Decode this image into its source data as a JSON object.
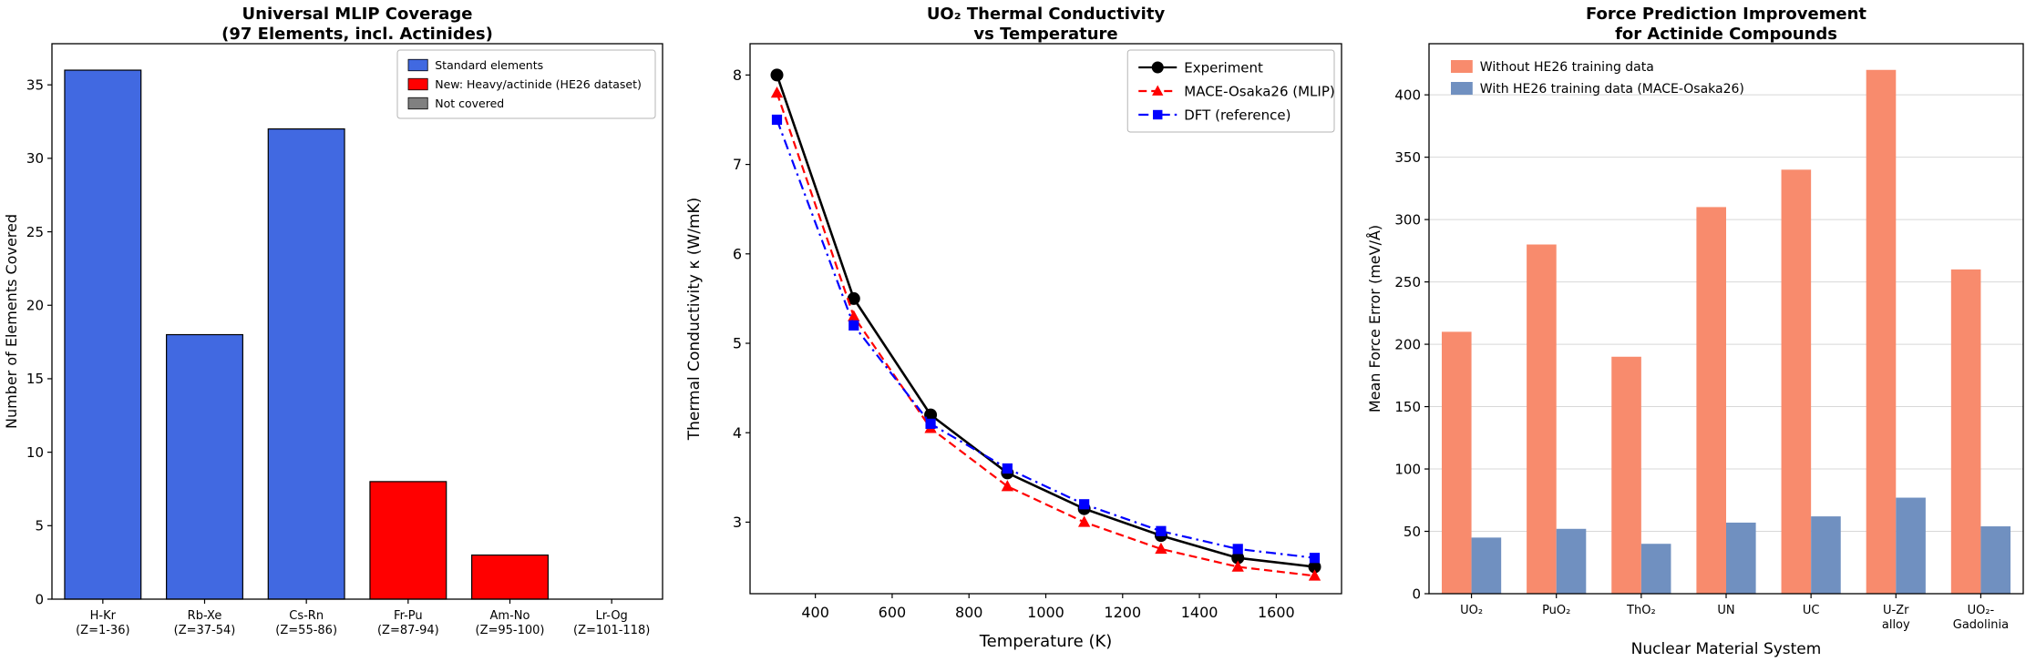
{
  "figure": {
    "background_color": "#ffffff"
  },
  "chart_data": [
    {
      "type": "bar",
      "title": "Universal MLIP Coverage\n(97 Elements, incl. Actinides)",
      "xlabel": "",
      "ylabel": "Number of Elements Covered",
      "categories": [
        "H-Kr\n(Z=1-36)",
        "Rb-Xe\n(Z=37-54)",
        "Cs-Rn\n(Z=55-86)",
        "Fr-Pu\n(Z=87-94)",
        "Am-No\n(Z=95-100)",
        "Lr-Og\n(Z=101-118)"
      ],
      "values": [
        36,
        18,
        32,
        8,
        3,
        0
      ],
      "bar_colors": [
        "#4169e1",
        "#4169e1",
        "#4169e1",
        "#ff0000",
        "#ff0000",
        "#808080"
      ],
      "ylim": [
        0,
        37.8
      ],
      "yticks": [
        0,
        5,
        10,
        15,
        20,
        25,
        30,
        35
      ],
      "grid": false,
      "legend": {
        "position": "top-right",
        "frame": true,
        "swatch_edge": "#000000",
        "items": [
          {
            "label": "Standard elements",
            "color": "#4169e1"
          },
          {
            "label": "New: Heavy/actinide (HE26 dataset)",
            "color": "#ff0000"
          },
          {
            "label": "Not covered",
            "color": "#808080"
          }
        ]
      }
    },
    {
      "type": "line",
      "title": "UO₂ Thermal Conductivity\nvs Temperature",
      "xlabel": "Temperature (K)",
      "ylabel": "Thermal Conductivity κ (W/mK)",
      "x": [
        300,
        500,
        700,
        900,
        1100,
        1300,
        1500,
        1700
      ],
      "xlim": [
        230,
        1770
      ],
      "ylim": [
        2.2,
        8.35
      ],
      "xticks": [
        400,
        600,
        800,
        1000,
        1200,
        1400,
        1600
      ],
      "yticks": [
        3,
        4,
        5,
        6,
        7,
        8
      ],
      "grid": false,
      "series": [
        {
          "name": "Experiment",
          "color": "#000000",
          "marker": "circle",
          "dash": "solid",
          "values": [
            8.0,
            5.5,
            4.2,
            3.55,
            3.15,
            2.85,
            2.6,
            2.5
          ]
        },
        {
          "name": "MACE-Osaka26 (MLIP)",
          "color": "#ff0000",
          "marker": "triangle",
          "dash": "dashed",
          "values": [
            7.8,
            5.3,
            4.05,
            3.4,
            3.0,
            2.7,
            2.5,
            2.4
          ]
        },
        {
          "name": "DFT (reference)",
          "color": "#0000ff",
          "marker": "square",
          "dash": "dashdot",
          "values": [
            7.5,
            5.2,
            4.1,
            3.6,
            3.2,
            2.9,
            2.7,
            2.6
          ]
        }
      ],
      "legend": {
        "position": "top-right",
        "frame": true
      }
    },
    {
      "type": "grouped_bar",
      "title": "Force Prediction Improvement\nfor Actinide Compounds",
      "xlabel": "Nuclear Material System",
      "ylabel": "Mean Force Error (meV/Å)",
      "categories": [
        "UO₂",
        "PuO₂",
        "ThO₂",
        "UN",
        "UC",
        "U-Zr\nalloy",
        "UO₂-\nGadolinia"
      ],
      "ylim": [
        0,
        441
      ],
      "yticks": [
        0,
        50,
        100,
        150,
        200,
        250,
        300,
        350,
        400
      ],
      "grid": true,
      "series": [
        {
          "name": "Without HE26 training data",
          "color": "#f88b6d",
          "values": [
            210,
            280,
            190,
            310,
            340,
            420,
            260
          ]
        },
        {
          "name": "With HE26 training data (MACE-Osaka26)",
          "color": "#7090c0",
          "values": [
            45,
            52,
            40,
            57,
            62,
            77,
            54
          ]
        }
      ],
      "legend": {
        "position": "top-left",
        "frame": false
      }
    }
  ]
}
